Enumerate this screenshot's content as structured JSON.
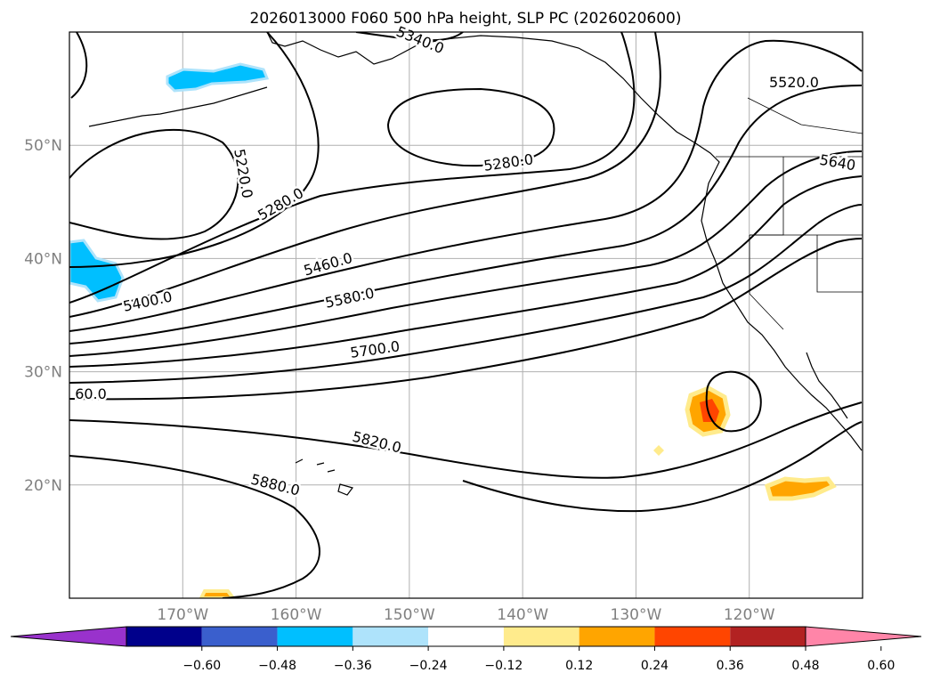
{
  "title": "2026013000 F060 500 hPa height, SLP PC (2026020600)",
  "map": {
    "projection": "PlateCarree",
    "lon_range": [
      -180,
      -110
    ],
    "lat_range": [
      10,
      60
    ],
    "gridlines": true,
    "lat_ticks": [
      {
        "value": 50,
        "label": "50°N"
      },
      {
        "value": 40,
        "label": "40°N"
      },
      {
        "value": 30,
        "label": "30°N"
      },
      {
        "value": 20,
        "label": "20°N"
      }
    ],
    "lon_ticks": [
      {
        "value": -170,
        "label": "170°W"
      },
      {
        "value": -160,
        "label": "160°W"
      },
      {
        "value": -150,
        "label": "150°W"
      },
      {
        "value": -140,
        "label": "140°W"
      },
      {
        "value": -130,
        "label": "130°W"
      },
      {
        "value": -120,
        "label": "120°W"
      }
    ],
    "contour_labels": [
      {
        "text": "5220.0"
      },
      {
        "text": "5340.0"
      },
      {
        "text": "5280.0"
      },
      {
        "text": "5280.0"
      },
      {
        "text": "5520.0"
      },
      {
        "text": "5640"
      },
      {
        "text": "5460.0"
      },
      {
        "text": "5400.0"
      },
      {
        "text": "5580.0"
      },
      {
        "text": "5700.0"
      },
      {
        "text": "60.0"
      },
      {
        "text": "5820.0"
      },
      {
        "text": "5880.0"
      }
    ]
  },
  "colorbar": {
    "colors": [
      "#9932cc",
      "#00008b",
      "#3a5fcd",
      "#00bfff",
      "#aee3fb",
      "#ffffff",
      "#ffeb8c",
      "#ffa500",
      "#ff4500",
      "#b22222",
      "#ff85a8"
    ],
    "ticks": [
      "−0.60",
      "−0.48",
      "−0.36",
      "−0.24",
      "−0.12",
      "0.12",
      "0.24",
      "0.36",
      "0.48",
      "0.60"
    ],
    "extend": "both"
  },
  "colors": {
    "contour": "#000000",
    "grid": "#b0b0b0",
    "tick_label": "#808080"
  }
}
